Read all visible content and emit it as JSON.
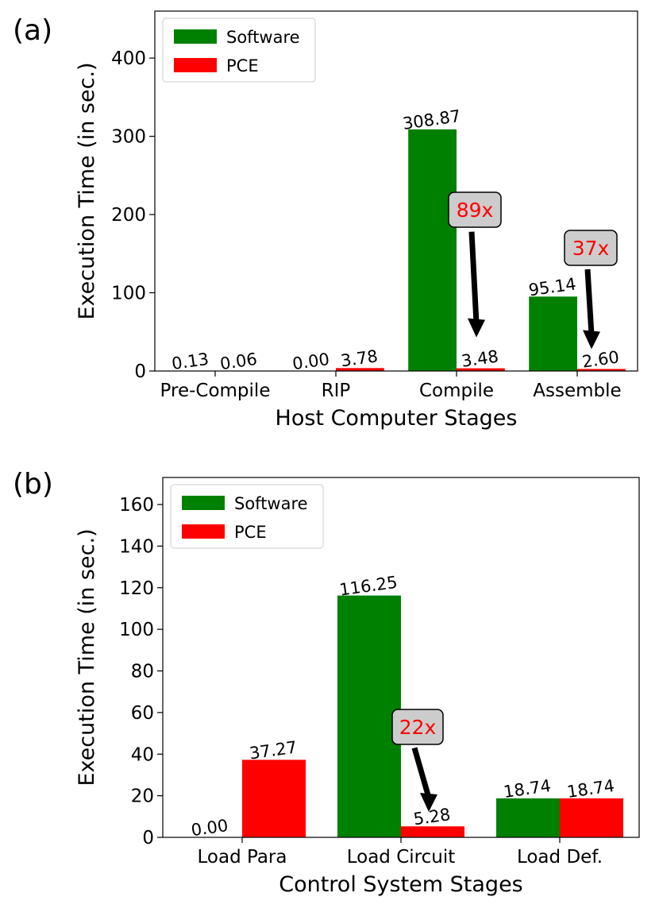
{
  "chart_data": [
    {
      "type": "bar",
      "panel_label": "(a)",
      "xlabel": "Host Computer Stages",
      "ylabel": "Execution Time (in sec.)",
      "categories": [
        "Pre-Compile",
        "RIP",
        "Compile",
        "Assemble"
      ],
      "series": [
        {
          "name": "Software",
          "color": "#008000",
          "values": [
            0.13,
            0.0,
            308.87,
            95.14
          ]
        },
        {
          "name": "PCE",
          "color": "#ff0000",
          "values": [
            0.06,
            3.78,
            3.48,
            2.6
          ]
        }
      ],
      "value_labels": [
        [
          "0.13",
          "0.00",
          "308.87",
          "95.14"
        ],
        [
          "0.06",
          "3.78",
          "3.48",
          "2.60"
        ]
      ],
      "ylim": [
        0,
        460
      ],
      "yticks": [
        0,
        100,
        200,
        300,
        400
      ],
      "legend": "top-left",
      "grid": false,
      "annotations": [
        {
          "text": "89x",
          "category": 2,
          "arrow_from_value": 178,
          "arrow_to_value": 45
        },
        {
          "text": "37x",
          "category": 3,
          "arrow_from_value": 130,
          "arrow_to_value": 30
        }
      ]
    },
    {
      "type": "bar",
      "panel_label": "(b)",
      "xlabel": "Control System Stages",
      "ylabel": "Execution Time (in sec.)",
      "categories": [
        "Load Para",
        "Load Circuit",
        "Load Def."
      ],
      "series": [
        {
          "name": "Software",
          "color": "#008000",
          "values": [
            0.0,
            116.25,
            18.74
          ]
        },
        {
          "name": "PCE",
          "color": "#ff0000",
          "values": [
            37.27,
            5.28,
            18.74
          ]
        }
      ],
      "value_labels": [
        [
          "0.00",
          "116.25",
          "18.74"
        ],
        [
          "37.27",
          "5.28",
          "18.74"
        ]
      ],
      "ylim": [
        0,
        173
      ],
      "yticks": [
        0,
        20,
        40,
        60,
        80,
        100,
        120,
        140,
        160
      ],
      "legend": "top-left",
      "grid": false,
      "annotations": [
        {
          "text": "22x",
          "category": 1,
          "arrow_from_value": 43,
          "arrow_to_value": 13
        }
      ]
    }
  ]
}
